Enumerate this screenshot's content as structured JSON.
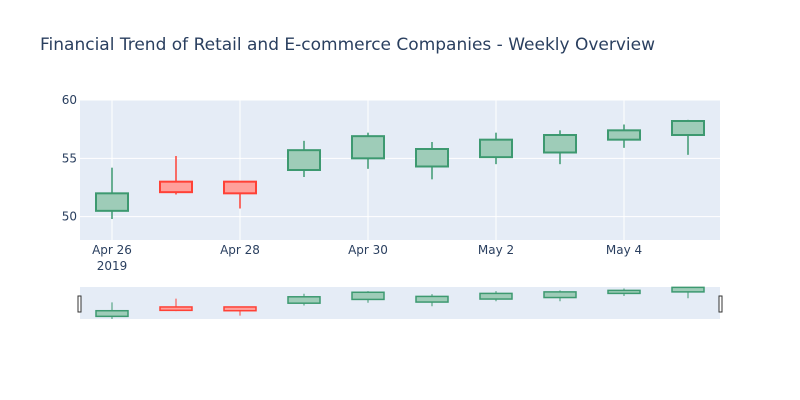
{
  "chart_data": {
    "type": "candlestick",
    "title": "Financial Trend of Retail and E-commerce Companies - Weekly Overview",
    "x": [
      "2019-04-26",
      "2019-04-27",
      "2019-04-28",
      "2019-04-29",
      "2019-04-30",
      "2019-05-01",
      "2019-05-02",
      "2019-05-03",
      "2019-05-04",
      "2019-05-05"
    ],
    "open": [
      50.5,
      53.0,
      53.0,
      54.0,
      55.0,
      54.3,
      55.1,
      55.5,
      56.6,
      57.0
    ],
    "high": [
      54.2,
      55.2,
      53.0,
      56.5,
      57.2,
      56.4,
      57.2,
      57.4,
      57.9,
      58.3
    ],
    "low": [
      49.8,
      51.9,
      50.7,
      53.4,
      54.1,
      53.2,
      54.5,
      54.5,
      55.9,
      55.3
    ],
    "close": [
      52.0,
      52.1,
      52.0,
      55.7,
      56.9,
      55.8,
      56.6,
      57.0,
      57.4,
      58.2
    ],
    "increasing_color": "#3d9970",
    "decreasing_color": "#ff4136",
    "ylim": [
      48,
      60
    ],
    "yticks": [
      50,
      55,
      60
    ],
    "xticks": [
      {
        "date": "2019-04-26",
        "label": "Apr 26",
        "sublabel": "2019"
      },
      {
        "date": "2019-04-28",
        "label": "Apr 28",
        "sublabel": ""
      },
      {
        "date": "2019-04-30",
        "label": "Apr 30",
        "sublabel": ""
      },
      {
        "date": "2019-05-02",
        "label": "May 2",
        "sublabel": ""
      },
      {
        "date": "2019-05-04",
        "label": "May 4",
        "sublabel": ""
      }
    ],
    "grid": true,
    "rangeslider": true,
    "plot_bgcolor": "#e5ecf6"
  }
}
